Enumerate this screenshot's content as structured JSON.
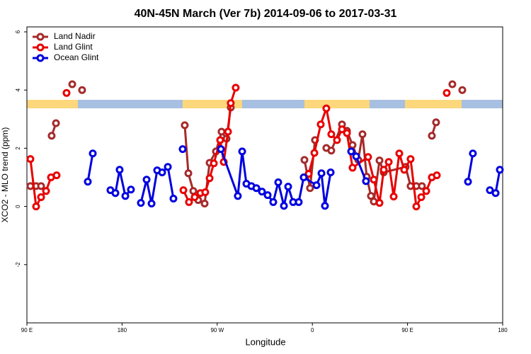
{
  "chart_data": {
    "type": "line",
    "title": "40N-45N March (Ver 7b)   2014-09-06 to 2017-03-31",
    "xlabel": "Longitude",
    "ylabel": "XCO2 - MLO trend (ppm)",
    "xlim": [
      90,
      540
    ],
    "xticks": [
      {
        "value": 90,
        "label": "90 E"
      },
      180,
      {
        "value": 270,
        "label": "90 W"
      },
      {
        "value": 360,
        "label": "0"
      },
      {
        "value": 450,
        "label": "90 E"
      },
      {
        "value": 540,
        "label": "180"
      }
    ],
    "ylim": [
      -4,
      6.17
    ],
    "yticks": [
      -2,
      0,
      2,
      4,
      6
    ],
    "legend": "upper left",
    "series": [
      {
        "name": "Land Nadir",
        "color": "#a52a2a",
        "x": [
          93.3,
          98.7,
          103.4,
          null,
          113.4,
          117.5,
          null,
          132.9,
          null,
          142.2,
          null,
          239.3,
          242.7,
          247.4,
          252.0,
          258.1,
          262.8,
          268.8,
          274.1,
          278.8,
          282.8,
          null,
          352.5,
          357.8,
          362.5,
          null,
          373.2,
          377.9,
          388.0,
          392.7,
          398.0,
          403.4,
          407.4,
          411.4,
          415.4,
          418.1,
          423.5,
          427.5,
          448.2,
          452.9,
          458.3,
          463.6,
          null,
          473.0,
          477.0,
          null,
          492.4,
          null,
          501.8
        ],
        "values": [
          0.7,
          0.7,
          0.7,
          null,
          2.43,
          2.86,
          null,
          4.2,
          null,
          4.0,
          null,
          2.79,
          1.14,
          0.53,
          0.22,
          0.1,
          1.5,
          1.89,
          2.57,
          2.33,
          3.4,
          null,
          1.6,
          0.63,
          2.28,
          null,
          2.01,
          1.92,
          2.82,
          2.6,
          2.11,
          1.6,
          2.48,
          1.02,
          0.36,
          0.17,
          1.58,
          1.17,
          1.36,
          0.7,
          0.7,
          0.7,
          null,
          2.43,
          2.89,
          null,
          4.2,
          null,
          4.0
        ]
      },
      {
        "name": "Land Glint",
        "color": "#e80000",
        "x": [
          93.3,
          98.7,
          103.4,
          108.1,
          112.8,
          118.1,
          null,
          127.5,
          null,
          238.0,
          243.3,
          248.7,
          254.1,
          258.7,
          262.8,
          266.8,
          272.8,
          276.2,
          280.2,
          282.8,
          287.5,
          null,
          356.5,
          361.9,
          367.9,
          373.2,
          377.9,
          383.3,
          388.0,
          392.7,
          398.0,
          412.7,
          418.1,
          423.5,
          427.5,
          432.2,
          436.9,
          442.2,
          446.9,
          452.9,
          458.3,
          463.0,
          467.7,
          473.0,
          477.7,
          null,
          487.1
        ],
        "values": [
          1.63,
          0.0,
          0.32,
          0.53,
          1.0,
          1.07,
          null,
          3.9,
          null,
          0.56,
          0.15,
          0.32,
          0.46,
          0.49,
          0.97,
          1.48,
          2.28,
          1.53,
          2.57,
          3.55,
          4.08,
          null,
          1.12,
          1.84,
          2.82,
          3.37,
          2.48,
          2.28,
          2.65,
          2.52,
          1.33,
          1.7,
          0.92,
          0.12,
          1.26,
          1.53,
          0.34,
          1.82,
          1.26,
          1.63,
          0.0,
          0.32,
          0.53,
          1.0,
          1.07,
          null,
          3.9
        ]
      },
      {
        "name": "Ocean Glint",
        "color": "#0000e0",
        "x": [
          147.6,
          152.3,
          null,
          169.0,
          173.7,
          177.7,
          183.1,
          188.4,
          null,
          197.8,
          203.2,
          207.9,
          213.2,
          217.9,
          223.3,
          228.6,
          null,
          237.3,
          null,
          273.5,
          289.5,
          293.6,
          297.6,
          302.3,
          307.0,
          312.3,
          317.7,
          323.0,
          327.7,
          333.1,
          337.1,
          341.8,
          347.1,
          351.8,
          363.9,
          368.6,
          371.9,
          377.3,
          null,
          396.7,
          401.4,
          410.7,
          null,
          507.2,
          511.8,
          null,
          527.9,
          533.3,
          537.3
        ],
        "values": [
          0.85,
          1.82,
          null,
          0.56,
          0.46,
          1.26,
          0.36,
          0.58,
          null,
          0.12,
          0.92,
          0.1,
          1.24,
          1.17,
          1.36,
          0.27,
          null,
          1.97,
          null,
          1.97,
          0.36,
          1.89,
          0.78,
          0.7,
          0.63,
          0.51,
          0.39,
          0.15,
          0.83,
          0.02,
          0.68,
          0.15,
          0.15,
          1.0,
          0.73,
          1.14,
          0.02,
          1.17,
          null,
          1.89,
          1.72,
          0.87,
          null,
          0.85,
          1.82,
          null,
          0.56,
          0.46,
          1.26
        ]
      }
    ]
  }
}
